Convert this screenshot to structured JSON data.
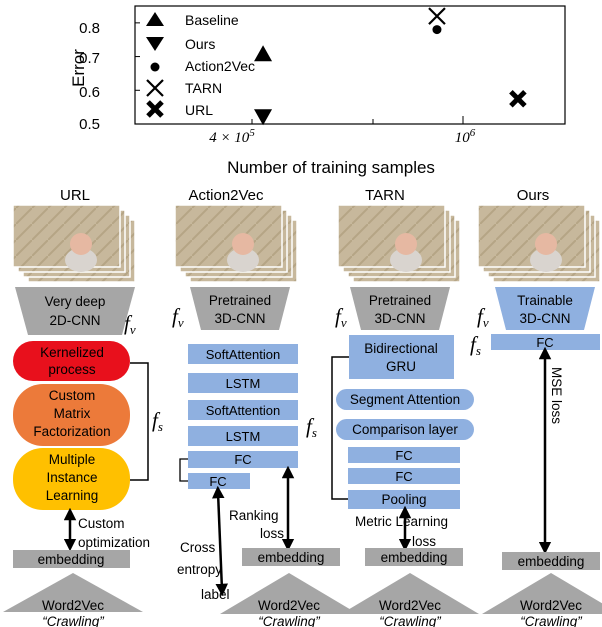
{
  "chart_data": {
    "type": "scatter",
    "xlabel": "Number of training samples",
    "ylabel": "Error",
    "x_scale": "log",
    "x_ticks": [
      "4 × 10^5",
      "10^6"
    ],
    "y_ticks": [
      "0.5",
      "0.6",
      "0.7",
      "0.8"
    ],
    "ylim": [
      0.5,
      0.85
    ],
    "legend_position": "top-left",
    "series": [
      {
        "name": "Baseline",
        "marker": "triangle-up",
        "points": [
          {
            "x": 450000,
            "y": 0.71
          }
        ]
      },
      {
        "name": "Ours",
        "marker": "triangle-down",
        "points": [
          {
            "x": 450000,
            "y": 0.52
          }
        ]
      },
      {
        "name": "Action2Vec",
        "marker": "dot",
        "points": [
          {
            "x": 1000000,
            "y": 0.78
          }
        ]
      },
      {
        "name": "TARN",
        "marker": "x",
        "points": [
          {
            "x": 1000000,
            "y": 0.82
          }
        ]
      },
      {
        "name": "URL",
        "marker": "X-bold",
        "points": [
          {
            "x": 1450000,
            "y": 0.575
          }
        ]
      }
    ]
  },
  "columns": {
    "url": {
      "title": "URL",
      "encoder": [
        "Very deep",
        "2D-CNN"
      ],
      "blocks": [
        [
          "Kernelized",
          "process"
        ],
        [
          "Custom",
          "Matrix",
          "Factorization"
        ],
        [
          "Multiple",
          "Instance",
          "Learning"
        ]
      ],
      "loss": [
        "Custom",
        "optimization"
      ],
      "embedding": "embedding",
      "w2v": "Word2Vec",
      "word": "“Crawling”"
    },
    "action2vec": {
      "title": "Action2Vec",
      "encoder": [
        "Pretrained",
        "3D-CNN"
      ],
      "layers": [
        "SoftAttention",
        "LSTM",
        "SoftAttention",
        "LSTM",
        "FC",
        "FC"
      ],
      "loss1": [
        "Ranking",
        "loss"
      ],
      "loss2": [
        "Cross",
        "entropy"
      ],
      "label": "label",
      "embedding": "embedding",
      "w2v": "Word2Vec",
      "word": "“Crawling”"
    },
    "tarn": {
      "title": "TARN",
      "encoder": [
        "Pretrained",
        "3D-CNN"
      ],
      "gru": [
        "Bidirectional",
        "GRU"
      ],
      "seg": "Segment Attention",
      "cmp": "Comparison layer",
      "fc1": "FC",
      "fc2": "FC",
      "pool": "Pooling",
      "loss": [
        "Metric Learning",
        "loss"
      ],
      "embedding": "embedding",
      "w2v": "Word2Vec",
      "word": "“Crawling”"
    },
    "ours": {
      "title": "Ours",
      "encoder": [
        "Trainable",
        "3D-CNN"
      ],
      "fc": "FC",
      "loss": "MSE  loss",
      "embedding": "embedding",
      "w2v": "Word2Vec",
      "word": "“Crawling”"
    }
  },
  "math": {
    "fv": "f",
    "fv_sub": "v",
    "fs": "f",
    "fs_sub": "s"
  },
  "colors": {
    "gray": "#a6a6a6",
    "fc_blue": "#8fb0e0",
    "ours_encoder": "#8fb0e0",
    "red": "#e8101c",
    "orange": "#ec7a3a",
    "yellow": "#ffc000",
    "embed": "#a6a6a6"
  }
}
